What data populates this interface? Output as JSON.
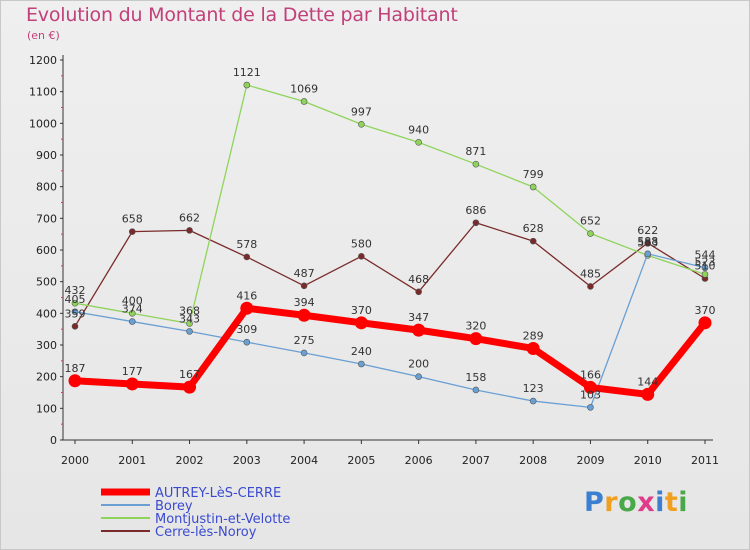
{
  "title": "Evolution du Montant de la Dette par Habitant",
  "unit": "(en €)",
  "logo": "Proxiti",
  "chart_data": {
    "type": "line",
    "x": [
      "2000",
      "2001",
      "2002",
      "2003",
      "2004",
      "2005",
      "2006",
      "2007",
      "2008",
      "2009",
      "2010",
      "2011"
    ],
    "ylim": [
      0,
      1200
    ],
    "yticks": [
      0,
      100,
      200,
      300,
      400,
      500,
      600,
      700,
      800,
      900,
      1000,
      1100,
      1200
    ],
    "grid": false,
    "legend_position": "bottom-left",
    "series": [
      {
        "name": "AUTREY-LèS-CERRE",
        "color": "#ff0000",
        "values": [
          187,
          177,
          167,
          416,
          394,
          370,
          347,
          320,
          289,
          166,
          144,
          370
        ],
        "labels": [
          "187",
          "177",
          "167",
          "416",
          "394",
          "370",
          "347",
          "320",
          "289",
          "166",
          "144",
          "370"
        ]
      },
      {
        "name": "Borey",
        "color": "#6a9fd3",
        "values": [
          405,
          374,
          343,
          309,
          275,
          240,
          200,
          158,
          123,
          103,
          588,
          544
        ],
        "labels": [
          "405",
          "374",
          "343",
          "309",
          "275",
          "240",
          "200",
          "158",
          "123",
          "103",
          "588",
          "544"
        ]
      },
      {
        "name": "Montjustin-et-Velotte",
        "color": "#8fd45a",
        "values": [
          432,
          400,
          368,
          1121,
          1069,
          997,
          940,
          871,
          799,
          652,
          583,
          523
        ],
        "labels": [
          "432",
          "400",
          "368",
          "1121",
          "1069",
          "997",
          "940",
          "871",
          "799",
          "652",
          "583",
          "523"
        ]
      },
      {
        "name": "Cerre-lès-Noroy",
        "color": "#7a2a2a",
        "values": [
          359,
          658,
          662,
          578,
          487,
          580,
          468,
          686,
          628,
          485,
          622,
          510
        ],
        "labels": [
          "359",
          "658",
          "662",
          "578",
          "487",
          "580",
          "468",
          "686",
          "628",
          "485",
          "622",
          "510"
        ]
      }
    ]
  }
}
